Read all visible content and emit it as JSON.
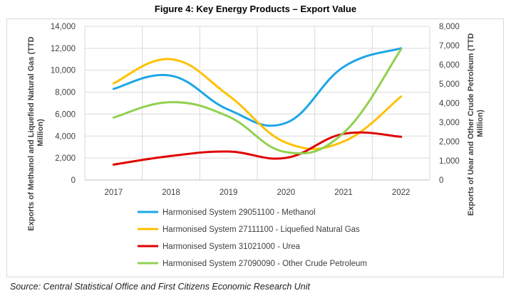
{
  "title": "Figure 4: Key Energy Products – Export Value",
  "source": "Source: Central Statistical Office and First Citizens Economic Research Unit",
  "chart_data": {
    "type": "line",
    "categories": [
      "2017",
      "2018",
      "2019",
      "2020",
      "2021",
      "2022"
    ],
    "ylabel_left": "Exports of Methanol and Liquefied Natural Gas (TTD Million)",
    "ylabel_right": "Exports of Uear and Other Crude Petroleum (TTD Million)",
    "ylim_left": [
      0,
      14000
    ],
    "ylim_right": [
      0,
      8000
    ],
    "yticks_left": [
      "0",
      "2,000",
      "4,000",
      "6,000",
      "8,000",
      "10,000",
      "12,000",
      "14,000"
    ],
    "yticks_right": [
      "0",
      "1,000",
      "2,000",
      "3,000",
      "4,000",
      "5,000",
      "6,000",
      "7,000",
      "8,000"
    ],
    "grid": true,
    "legend_position": "bottom",
    "series": [
      {
        "name": "Harmonised System 29051100 - Methanol",
        "axis": "left",
        "color": "#1ea6e6",
        "values": [
          8300,
          9500,
          6400,
          5200,
          10300,
          12000
        ]
      },
      {
        "name": "Harmonised System 27111100 - Liquefied Natural Gas",
        "axis": "left",
        "color": "#ffc000",
        "values": [
          8800,
          11000,
          7700,
          3400,
          3500,
          7600
        ]
      },
      {
        "name": "Harmonised System 31021000 - Urea",
        "axis": "right",
        "color": "#e00000",
        "values": [
          800,
          1250,
          1480,
          1150,
          2400,
          2250
        ]
      },
      {
        "name": "Harmonised System 27090090 - Other Crude Petroleum",
        "axis": "right",
        "color": "#92d050",
        "values": [
          3250,
          4050,
          3300,
          1450,
          2450,
          6800
        ]
      }
    ]
  }
}
